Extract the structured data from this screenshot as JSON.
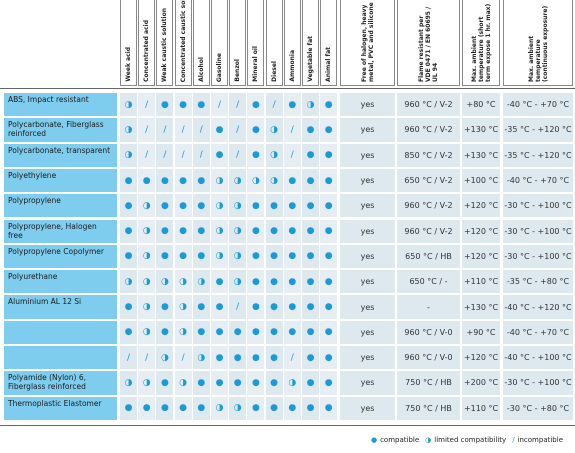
{
  "table": {
    "columns": [
      "Week acid",
      "Concentrated acid",
      "Weak caustic solution",
      "Concentrated caustic solution",
      "Alcohol",
      "Gasoline",
      "Benzol",
      "Mineral oil",
      "Diesel",
      "Ammonia",
      "Vegetable fat",
      "Animal fat",
      "Free of halogen, heavy metal, PVC and silicone",
      "Flame resistant per VDE 0471 / EN 60695 / UL 94",
      "Max. ambient temperature (short term expose 1 hr. max)",
      "Max. ambient temperature (continuous exposure)"
    ],
    "rows": [
      {
        "label": "ABS, Impact resistant",
        "cells": [
          "◑",
          "/",
          "●",
          "●",
          "●",
          "/",
          "/",
          "●",
          "/",
          "●",
          "◑",
          "●",
          "yes",
          "960 °C / V-2",
          "+80 °C",
          "-40 °C - +70 °C"
        ]
      },
      {
        "label": "Polycarbonate, Fiberglass reinforced",
        "cells": [
          "◑",
          "/",
          "/",
          "/",
          "/",
          "●",
          "/",
          "●",
          "◑",
          "/",
          "●",
          "●",
          "yes",
          "960 °C / V-2",
          "+130 °C",
          "-35 °C - +120 °C"
        ]
      },
      {
        "label": "Polycarbonate, transparent",
        "cells": [
          "◑",
          "/",
          "/",
          "/",
          "/",
          "●",
          "/",
          "●",
          "◑",
          "/",
          "●",
          "●",
          "yes",
          "850 °C / V-2",
          "+130 °C",
          "-35 °C - +120 °C"
        ]
      },
      {
        "label": "Polyethylene",
        "cells": [
          "●",
          "●",
          "●",
          "●",
          "●",
          "◑",
          "◑",
          "◑",
          "◑",
          "●",
          "●",
          "●",
          "yes",
          "650 °C / V-2",
          "+100 °C",
          "-40 °C - +70 °C"
        ]
      },
      {
        "label": "Polypropylene",
        "cells": [
          "●",
          "◑",
          "●",
          "●",
          "●",
          "◑",
          "◑",
          "●",
          "●",
          "●",
          "●",
          "●",
          "yes",
          "960 °C / V-2",
          "+120 °C",
          "-30 °C - +100 °C"
        ]
      },
      {
        "label": "Polypropylene, Halogen free",
        "cells": [
          "●",
          "◑",
          "●",
          "●",
          "●",
          "◑",
          "◑",
          "●",
          "●",
          "●",
          "●",
          "●",
          "yes",
          "960 °C / V-2",
          "+120 °C",
          "-30 °C - +100 °C"
        ]
      },
      {
        "label": "Polypropylene Copolymer",
        "cells": [
          "●",
          "◑",
          "●",
          "●",
          "●",
          "◑",
          "◑",
          "●",
          "●",
          "●",
          "●",
          "●",
          "yes",
          "650 °C / HB",
          "+120 °C",
          "-30 °C - +100 °C"
        ]
      },
      {
        "label": "Polyurethane",
        "cells": [
          "◑",
          "◑",
          "◑",
          "◑",
          "◑",
          "●",
          "◑",
          "●",
          "●",
          "●",
          "●",
          "●",
          "yes",
          "650 °C / -",
          "+110 °C",
          "-35 °C - +80 °C"
        ]
      },
      {
        "label": "Aluminium AL 12 Si",
        "cells": [
          "●",
          "◑",
          "●",
          "◑",
          "●",
          "●",
          "/",
          "●",
          "●",
          "●",
          "●",
          "●",
          "yes",
          "-",
          "+130 °C",
          "-40 °C - +120 °C"
        ]
      },
      {
        "label": null,
        "cells": [
          "●",
          "◑",
          "●",
          "◑",
          "●",
          "●",
          "●",
          "●",
          "●",
          "●",
          "●",
          "●",
          "yes",
          "960 °C / V-0",
          "+90 °C",
          "-40 °C - +70 °C"
        ]
      },
      {
        "label": null,
        "cells": [
          "/",
          "/",
          "◑",
          "/",
          "◑",
          "●",
          "●",
          "●",
          "●",
          "/",
          "●",
          "●",
          "yes",
          "960 °C / V-0",
          "+120 °C",
          "-40 °C - +100 °C"
        ]
      },
      {
        "label": "Polyamide (Nylon) 6, Fiberglass reinforced",
        "cells": [
          "◑",
          "◑",
          "●",
          "◑",
          "●",
          "●",
          "●",
          "●",
          "●",
          "◑",
          "●",
          "●",
          "yes",
          "750 °C / HB",
          "+200 °C",
          "-30 °C - +100 °C"
        ]
      },
      {
        "label": "Thermoplastic Elastomer",
        "cells": [
          "●",
          "●",
          "●",
          "●",
          "●",
          "◑",
          "◑",
          "●",
          "●",
          "●",
          "●",
          "●",
          "yes",
          "750 °C / HB",
          "+110 °C",
          "-30 °C - +80 °C"
        ]
      }
    ]
  },
  "legend": [
    {
      "symbol": "●",
      "text": "compatible"
    },
    {
      "symbol": "◑",
      "text": "limited compatibility"
    },
    {
      "symbol": "/",
      "text": "incompatible"
    }
  ]
}
